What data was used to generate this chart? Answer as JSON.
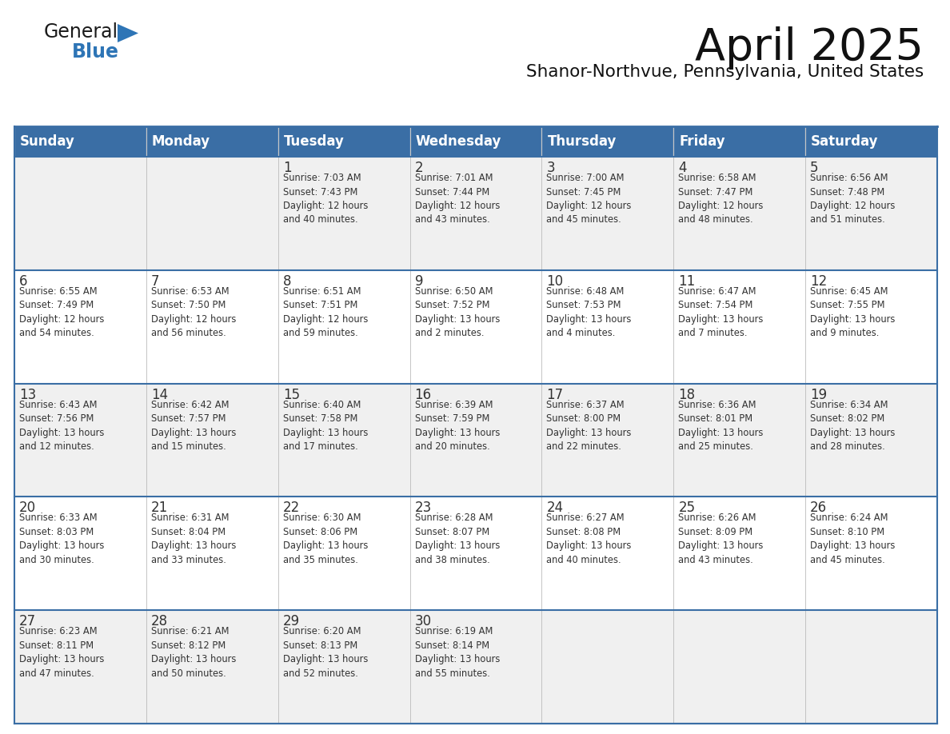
{
  "title": "April 2025",
  "subtitle": "Shanor-Northvue, Pennsylvania, United States",
  "header_color": "#3A6EA5",
  "header_text_color": "#FFFFFF",
  "cell_bg_odd": "#F0F0F0",
  "cell_bg_even": "#FFFFFF",
  "text_color": "#333333",
  "border_color": "#3A6EA5",
  "days_of_week": [
    "Sunday",
    "Monday",
    "Tuesday",
    "Wednesday",
    "Thursday",
    "Friday",
    "Saturday"
  ],
  "weeks": [
    [
      {
        "day": "",
        "info": ""
      },
      {
        "day": "",
        "info": ""
      },
      {
        "day": "1",
        "info": "Sunrise: 7:03 AM\nSunset: 7:43 PM\nDaylight: 12 hours\nand 40 minutes."
      },
      {
        "day": "2",
        "info": "Sunrise: 7:01 AM\nSunset: 7:44 PM\nDaylight: 12 hours\nand 43 minutes."
      },
      {
        "day": "3",
        "info": "Sunrise: 7:00 AM\nSunset: 7:45 PM\nDaylight: 12 hours\nand 45 minutes."
      },
      {
        "day": "4",
        "info": "Sunrise: 6:58 AM\nSunset: 7:47 PM\nDaylight: 12 hours\nand 48 minutes."
      },
      {
        "day": "5",
        "info": "Sunrise: 6:56 AM\nSunset: 7:48 PM\nDaylight: 12 hours\nand 51 minutes."
      }
    ],
    [
      {
        "day": "6",
        "info": "Sunrise: 6:55 AM\nSunset: 7:49 PM\nDaylight: 12 hours\nand 54 minutes."
      },
      {
        "day": "7",
        "info": "Sunrise: 6:53 AM\nSunset: 7:50 PM\nDaylight: 12 hours\nand 56 minutes."
      },
      {
        "day": "8",
        "info": "Sunrise: 6:51 AM\nSunset: 7:51 PM\nDaylight: 12 hours\nand 59 minutes."
      },
      {
        "day": "9",
        "info": "Sunrise: 6:50 AM\nSunset: 7:52 PM\nDaylight: 13 hours\nand 2 minutes."
      },
      {
        "day": "10",
        "info": "Sunrise: 6:48 AM\nSunset: 7:53 PM\nDaylight: 13 hours\nand 4 minutes."
      },
      {
        "day": "11",
        "info": "Sunrise: 6:47 AM\nSunset: 7:54 PM\nDaylight: 13 hours\nand 7 minutes."
      },
      {
        "day": "12",
        "info": "Sunrise: 6:45 AM\nSunset: 7:55 PM\nDaylight: 13 hours\nand 9 minutes."
      }
    ],
    [
      {
        "day": "13",
        "info": "Sunrise: 6:43 AM\nSunset: 7:56 PM\nDaylight: 13 hours\nand 12 minutes."
      },
      {
        "day": "14",
        "info": "Sunrise: 6:42 AM\nSunset: 7:57 PM\nDaylight: 13 hours\nand 15 minutes."
      },
      {
        "day": "15",
        "info": "Sunrise: 6:40 AM\nSunset: 7:58 PM\nDaylight: 13 hours\nand 17 minutes."
      },
      {
        "day": "16",
        "info": "Sunrise: 6:39 AM\nSunset: 7:59 PM\nDaylight: 13 hours\nand 20 minutes."
      },
      {
        "day": "17",
        "info": "Sunrise: 6:37 AM\nSunset: 8:00 PM\nDaylight: 13 hours\nand 22 minutes."
      },
      {
        "day": "18",
        "info": "Sunrise: 6:36 AM\nSunset: 8:01 PM\nDaylight: 13 hours\nand 25 minutes."
      },
      {
        "day": "19",
        "info": "Sunrise: 6:34 AM\nSunset: 8:02 PM\nDaylight: 13 hours\nand 28 minutes."
      }
    ],
    [
      {
        "day": "20",
        "info": "Sunrise: 6:33 AM\nSunset: 8:03 PM\nDaylight: 13 hours\nand 30 minutes."
      },
      {
        "day": "21",
        "info": "Sunrise: 6:31 AM\nSunset: 8:04 PM\nDaylight: 13 hours\nand 33 minutes."
      },
      {
        "day": "22",
        "info": "Sunrise: 6:30 AM\nSunset: 8:06 PM\nDaylight: 13 hours\nand 35 minutes."
      },
      {
        "day": "23",
        "info": "Sunrise: 6:28 AM\nSunset: 8:07 PM\nDaylight: 13 hours\nand 38 minutes."
      },
      {
        "day": "24",
        "info": "Sunrise: 6:27 AM\nSunset: 8:08 PM\nDaylight: 13 hours\nand 40 minutes."
      },
      {
        "day": "25",
        "info": "Sunrise: 6:26 AM\nSunset: 8:09 PM\nDaylight: 13 hours\nand 43 minutes."
      },
      {
        "day": "26",
        "info": "Sunrise: 6:24 AM\nSunset: 8:10 PM\nDaylight: 13 hours\nand 45 minutes."
      }
    ],
    [
      {
        "day": "27",
        "info": "Sunrise: 6:23 AM\nSunset: 8:11 PM\nDaylight: 13 hours\nand 47 minutes."
      },
      {
        "day": "28",
        "info": "Sunrise: 6:21 AM\nSunset: 8:12 PM\nDaylight: 13 hours\nand 50 minutes."
      },
      {
        "day": "29",
        "info": "Sunrise: 6:20 AM\nSunset: 8:13 PM\nDaylight: 13 hours\nand 52 minutes."
      },
      {
        "day": "30",
        "info": "Sunrise: 6:19 AM\nSunset: 8:14 PM\nDaylight: 13 hours\nand 55 minutes."
      },
      {
        "day": "",
        "info": ""
      },
      {
        "day": "",
        "info": ""
      },
      {
        "day": "",
        "info": ""
      }
    ]
  ],
  "logo_general_color": "#1A1A1A",
  "logo_blue_color": "#2E75B6",
  "logo_triangle_color": "#2E75B6"
}
